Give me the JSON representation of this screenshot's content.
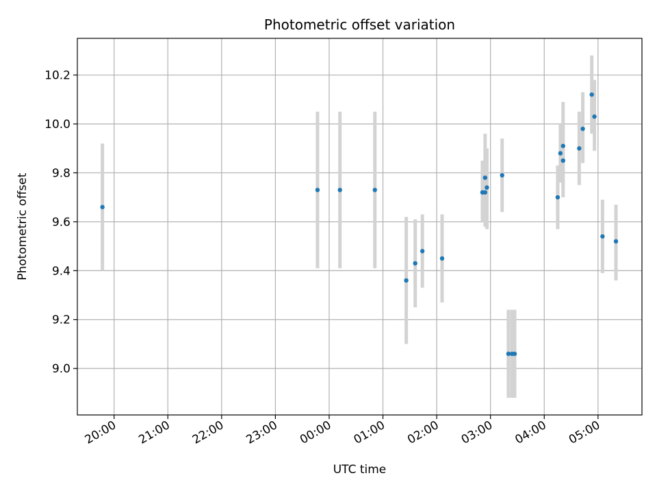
{
  "chart_data": {
    "type": "scatter",
    "title": "Photometric offset variation",
    "xlabel": "UTC time",
    "ylabel": "Photometric offset",
    "xlim": [
      "2023-01-01T19:19",
      "2023-01-02T05:49"
    ],
    "ylim": [
      8.81,
      10.35
    ],
    "grid": true,
    "x_ticks": [
      {
        "t": "2023-01-01T20:00",
        "label": "20:00"
      },
      {
        "t": "2023-01-01T21:00",
        "label": "21:00"
      },
      {
        "t": "2023-01-01T22:00",
        "label": "22:00"
      },
      {
        "t": "2023-01-01T23:00",
        "label": "23:00"
      },
      {
        "t": "2023-01-02T00:00",
        "label": "00:00"
      },
      {
        "t": "2023-01-02T01:00",
        "label": "01:00"
      },
      {
        "t": "2023-01-02T02:00",
        "label": "02:00"
      },
      {
        "t": "2023-01-02T03:00",
        "label": "03:00"
      },
      {
        "t": "2023-01-02T04:00",
        "label": "04:00"
      },
      {
        "t": "2023-01-02T05:00",
        "label": "05:00"
      }
    ],
    "y_ticks": [
      {
        "v": 9.0,
        "label": "9.0"
      },
      {
        "v": 9.2,
        "label": "9.2"
      },
      {
        "v": 9.4,
        "label": "9.4"
      },
      {
        "v": 9.6,
        "label": "9.6"
      },
      {
        "v": 9.8,
        "label": "9.8"
      },
      {
        "v": 10.0,
        "label": "10.0"
      },
      {
        "v": 10.2,
        "label": "10.2"
      }
    ],
    "colors": {
      "points": "#1f77b4",
      "error_bars": "#d3d3d3",
      "grid": "#b0b0b0"
    },
    "series": [
      {
        "points": [
          {
            "x": "2023-01-01T19:47",
            "y": 9.66,
            "ylow": 9.4,
            "yhigh": 9.92
          },
          {
            "x": "2023-01-01T23:47",
            "y": 9.73,
            "ylow": 9.41,
            "yhigh": 10.05
          },
          {
            "x": "2023-01-02T00:12",
            "y": 9.73,
            "ylow": 9.41,
            "yhigh": 10.05
          },
          {
            "x": "2023-01-02T00:51",
            "y": 9.73,
            "ylow": 9.41,
            "yhigh": 10.05
          },
          {
            "x": "2023-01-02T01:26",
            "y": 9.36,
            "ylow": 9.1,
            "yhigh": 9.62
          },
          {
            "x": "2023-01-02T01:36",
            "y": 9.43,
            "ylow": 9.25,
            "yhigh": 9.61
          },
          {
            "x": "2023-01-02T01:44",
            "y": 9.48,
            "ylow": 9.33,
            "yhigh": 9.63
          },
          {
            "x": "2023-01-02T02:06",
            "y": 9.45,
            "ylow": 9.27,
            "yhigh": 9.63
          },
          {
            "x": "2023-01-02T02:51",
            "y": 9.72,
            "ylow": 9.6,
            "yhigh": 9.85
          },
          {
            "x": "2023-01-02T02:54",
            "y": 9.72,
            "ylow": 9.58,
            "yhigh": 9.86
          },
          {
            "x": "2023-01-02T02:54",
            "y": 9.78,
            "ylow": 9.6,
            "yhigh": 9.96
          },
          {
            "x": "2023-01-02T02:56",
            "y": 9.74,
            "ylow": 9.57,
            "yhigh": 9.9
          },
          {
            "x": "2023-01-02T03:13",
            "y": 9.79,
            "ylow": 9.64,
            "yhigh": 9.94
          },
          {
            "x": "2023-01-02T03:20",
            "y": 9.06,
            "ylow": 8.88,
            "yhigh": 9.24
          },
          {
            "x": "2023-01-02T03:24",
            "y": 9.06,
            "ylow": 8.88,
            "yhigh": 9.24
          },
          {
            "x": "2023-01-02T03:27",
            "y": 9.06,
            "ylow": 8.88,
            "yhigh": 9.24
          },
          {
            "x": "2023-01-02T04:15",
            "y": 9.7,
            "ylow": 9.57,
            "yhigh": 9.83
          },
          {
            "x": "2023-01-02T04:18",
            "y": 9.88,
            "ylow": 9.76,
            "yhigh": 10.0
          },
          {
            "x": "2023-01-02T04:21",
            "y": 9.91,
            "ylow": 9.74,
            "yhigh": 10.09
          },
          {
            "x": "2023-01-02T04:21",
            "y": 9.85,
            "ylow": 9.7,
            "yhigh": 10.0
          },
          {
            "x": "2023-01-02T04:39",
            "y": 9.9,
            "ylow": 9.75,
            "yhigh": 10.05
          },
          {
            "x": "2023-01-02T04:43",
            "y": 9.98,
            "ylow": 9.84,
            "yhigh": 10.13
          },
          {
            "x": "2023-01-02T04:53",
            "y": 10.12,
            "ylow": 9.96,
            "yhigh": 10.28
          },
          {
            "x": "2023-01-02T04:56",
            "y": 10.03,
            "ylow": 9.89,
            "yhigh": 10.18
          },
          {
            "x": "2023-01-02T05:05",
            "y": 9.54,
            "ylow": 9.39,
            "yhigh": 9.69
          },
          {
            "x": "2023-01-02T05:20",
            "y": 9.52,
            "ylow": 9.36,
            "yhigh": 9.67
          }
        ]
      }
    ]
  }
}
